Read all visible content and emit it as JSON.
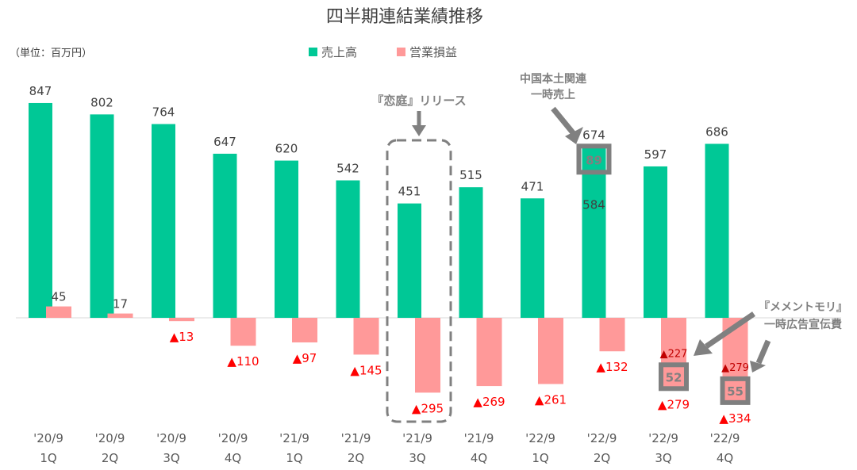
{
  "chart_data": {
    "type": "bar",
    "title": "四半期連結業績推移",
    "unit_label": "（単位：百万円）",
    "categories": [
      [
        "'20/9",
        "1Q"
      ],
      [
        "'20/9",
        "2Q"
      ],
      [
        "'20/9",
        "3Q"
      ],
      [
        "'20/9",
        "4Q"
      ],
      [
        "'21/9",
        "1Q"
      ],
      [
        "'21/9",
        "2Q"
      ],
      [
        "'21/9",
        "3Q"
      ],
      [
        "'21/9",
        "4Q"
      ],
      [
        "'22/9",
        "1Q"
      ],
      [
        "'22/9",
        "2Q"
      ],
      [
        "'22/9",
        "3Q"
      ],
      [
        "'22/9",
        "4Q"
      ]
    ],
    "series": [
      {
        "name": "売上高",
        "color": "#00C896",
        "values": [
          847,
          802,
          764,
          647,
          620,
          542,
          451,
          515,
          471,
          674,
          597,
          686
        ]
      },
      {
        "name": "営業損益",
        "color": "#FF9999",
        "values": [
          45,
          17,
          -13,
          -110,
          -97,
          -145,
          -295,
          -269,
          -261,
          -132,
          -279,
          -334
        ]
      }
    ],
    "negative_prefix": "▲",
    "negative_label_color": "#FF0000",
    "legend_position": "top",
    "grid": false,
    "annotations": {
      "release": {
        "text": "『恋庭』リリース",
        "category_index": 6
      },
      "china": {
        "text_lines": [
          "中国本土関連",
          "一時売上"
        ],
        "category_index": 9,
        "one_time_value": 89,
        "base_value": 584
      },
      "memento": {
        "text_lines": [
          "『メメントモリ』",
          "一時広告宣伝費"
        ],
        "items": [
          {
            "category_index": 10,
            "one_time_value": 52,
            "base_value": -227
          },
          {
            "category_index": 11,
            "one_time_value": 55,
            "base_value": -279
          }
        ]
      }
    }
  }
}
